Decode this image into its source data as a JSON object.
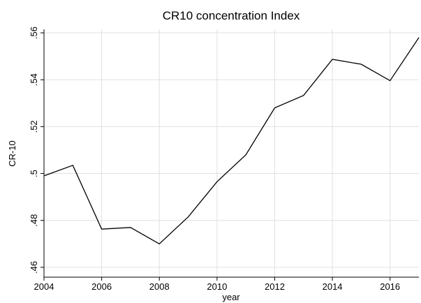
{
  "chart_data": {
    "type": "line",
    "title": "CR10 concentration Index",
    "x_label": "year",
    "y_label": "CR-10",
    "x": [
      2004,
      2005,
      2006,
      2007,
      2008,
      2009,
      2010,
      2011,
      2012,
      2013,
      2014,
      2015,
      2016,
      2017
    ],
    "series": [
      {
        "name": "CR-10",
        "color": "#000000",
        "values": [
          0.499,
          0.5035,
          0.4763,
          0.477,
          0.47,
          0.4815,
          0.4965,
          0.508,
          0.528,
          0.5333,
          0.5487,
          0.5466,
          0.5396,
          0.558
        ]
      }
    ],
    "xlim": [
      2004,
      2017
    ],
    "xticks": [
      2004,
      2006,
      2008,
      2010,
      2012,
      2014,
      2016
    ],
    "ylim": [
      0.4558,
      0.5615
    ],
    "yticks": [
      {
        "value": 0.46,
        "label": ".46"
      },
      {
        "value": 0.48,
        "label": ".48"
      },
      {
        "value": 0.5,
        "label": ".5"
      },
      {
        "value": 0.52,
        "label": ".52"
      },
      {
        "value": 0.54,
        "label": ".54"
      },
      {
        "value": 0.56,
        "label": ".56"
      }
    ],
    "grid": true
  }
}
